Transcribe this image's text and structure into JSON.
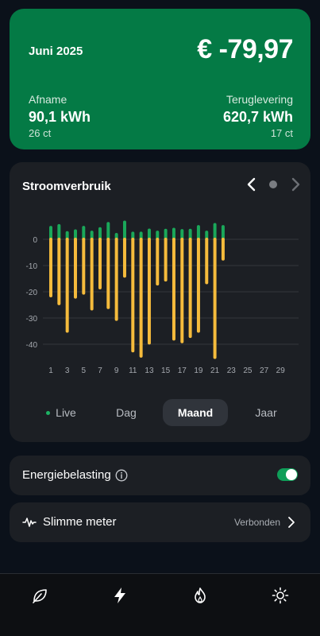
{
  "summary": {
    "month": "Juni 2025",
    "total": "€ -79,97",
    "afname_label": "Afname",
    "afname_value": "90,1 kWh",
    "afname_price": "26 ct",
    "terug_label": "Teruglevering",
    "terug_value": "620,7 kWh",
    "terug_price": "17 ct"
  },
  "usage_card": {
    "title": "Stroomverbruik",
    "tabs": {
      "live": "Live",
      "dag": "Dag",
      "maand": "Maand",
      "jaar": "Jaar"
    },
    "active_tab": "Maand"
  },
  "chart_data": {
    "type": "bar",
    "x_tick_labels": [
      "1",
      "3",
      "5",
      "7",
      "9",
      "11",
      "13",
      "15",
      "17",
      "19",
      "21",
      "23",
      "25",
      "27",
      "29"
    ],
    "y_tick_labels": [
      "0",
      "-10",
      "-20",
      "-30",
      "-40"
    ],
    "ylim": [
      -46,
      6
    ],
    "days": [
      1,
      2,
      3,
      4,
      5,
      6,
      7,
      8,
      9,
      10,
      11,
      12,
      13,
      14,
      15,
      16,
      17,
      18,
      19,
      20,
      21,
      22
    ],
    "series": [
      {
        "color": "#1aa85a",
        "values": [
          4.5,
          5.2,
          2.5,
          3.2,
          4.5,
          2.7,
          4.0,
          6.0,
          1.8,
          6.5,
          2.3,
          2.3,
          3.5,
          2.7,
          3.4,
          3.8,
          3.3,
          3.4,
          4.8,
          2.7,
          5.6,
          4.8
        ]
      },
      {
        "color": "#f5bb3c",
        "values": [
          -21.5,
          -24.5,
          -35.0,
          -22.0,
          -20.5,
          -26.5,
          -18.5,
          -26.0,
          -30.5,
          -14.0,
          -42.5,
          -44.5,
          -39.5,
          -17.0,
          -15.5,
          -38.0,
          -39.0,
          -37.0,
          -35.0,
          -16.5,
          -45.0,
          -7.5
        ]
      }
    ],
    "grid": true
  },
  "settings": {
    "energy_tax_label": "Energiebelasting",
    "energy_tax_enabled": true,
    "smart_meter_label": "Slimme meter",
    "smart_meter_status": "Verbonden"
  },
  "icons": {
    "prev": "chevron-left-icon",
    "next": "chevron-right-icon",
    "info": "info-icon",
    "pulse": "pulse-icon",
    "nav": [
      "leaf-icon",
      "lightning-icon",
      "flame-icon",
      "sun-icon"
    ]
  }
}
